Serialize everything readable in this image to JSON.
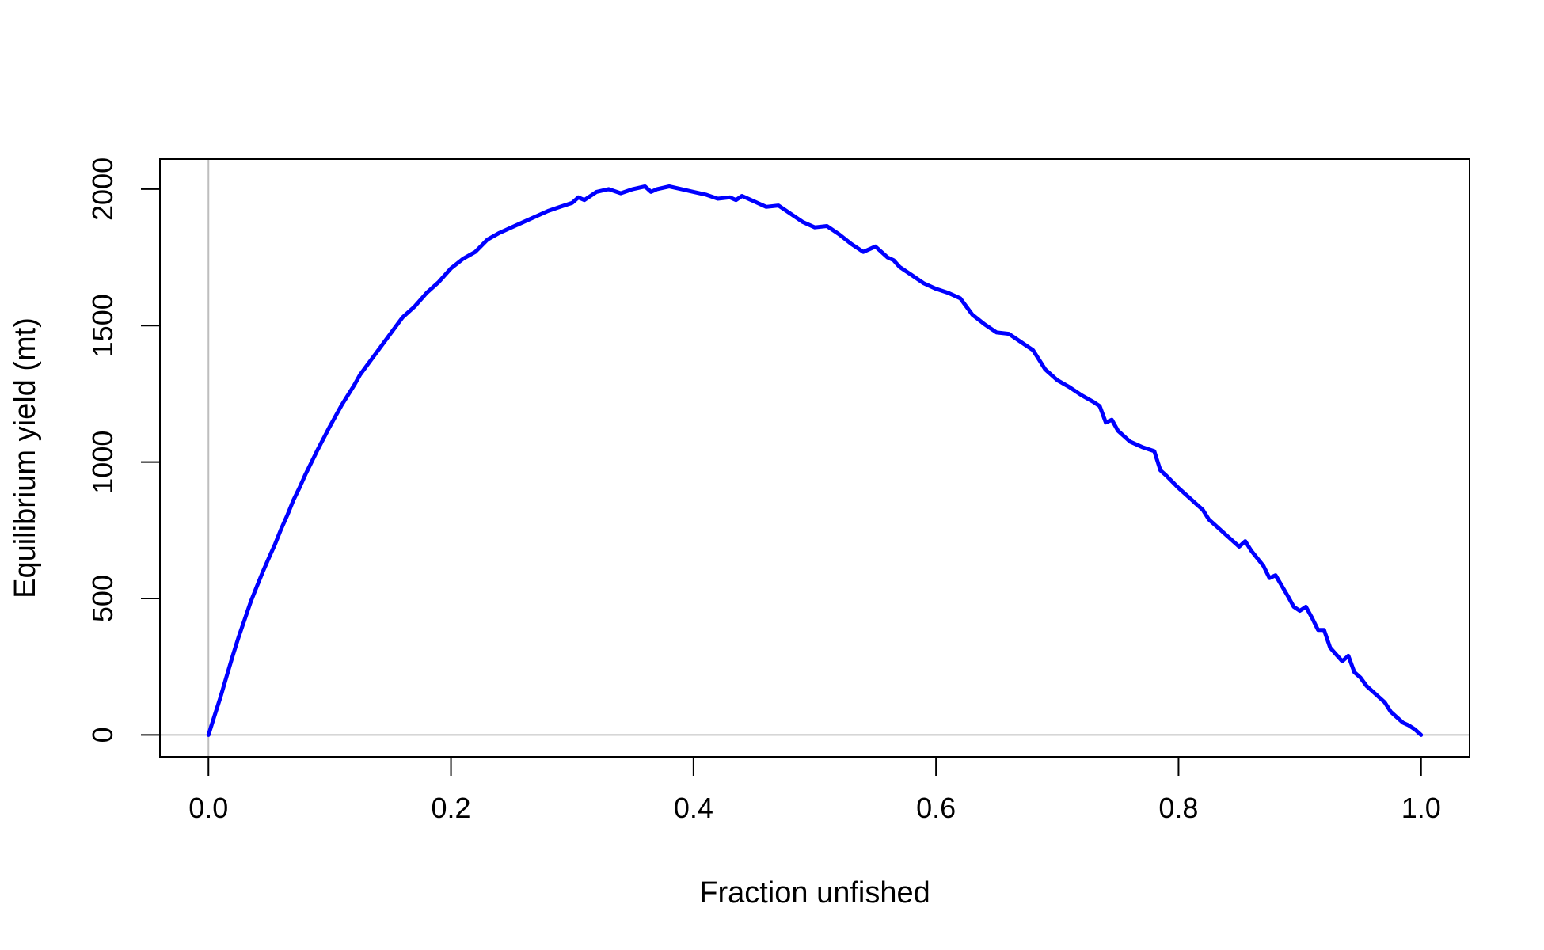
{
  "chart_data": {
    "type": "line",
    "title": "",
    "xlabel": "Fraction unfished",
    "ylabel": "Equilibrium yield (mt)",
    "xlim": [
      -0.04,
      1.04
    ],
    "ylim": [
      -80,
      2110
    ],
    "x_ticks": [
      0.0,
      0.2,
      0.4,
      0.6,
      0.8,
      1.0
    ],
    "x_tick_labels": [
      "0.0",
      "0.2",
      "0.4",
      "0.6",
      "0.8",
      "1.0"
    ],
    "y_ticks": [
      0,
      500,
      1000,
      1500,
      2000
    ],
    "y_tick_labels": [
      "0",
      "500",
      "1000",
      "1500",
      "2000"
    ],
    "reference_lines": [
      {
        "orientation": "vertical",
        "value": 0,
        "color": "#bebebe"
      },
      {
        "orientation": "horizontal",
        "value": 0,
        "color": "#bebebe"
      }
    ],
    "series": [
      {
        "name": "Equilibrium yield",
        "color": "#0000ff",
        "x": [
          0.0,
          0.005,
          0.01,
          0.015,
          0.02,
          0.025,
          0.03,
          0.035,
          0.04,
          0.045,
          0.05,
          0.055,
          0.06,
          0.065,
          0.07,
          0.075,
          0.08,
          0.09,
          0.1,
          0.11,
          0.12,
          0.125,
          0.13,
          0.14,
          0.15,
          0.16,
          0.17,
          0.18,
          0.19,
          0.2,
          0.21,
          0.22,
          0.23,
          0.24,
          0.25,
          0.26,
          0.27,
          0.28,
          0.29,
          0.3,
          0.305,
          0.31,
          0.32,
          0.33,
          0.34,
          0.35,
          0.36,
          0.365,
          0.37,
          0.38,
          0.39,
          0.4,
          0.41,
          0.42,
          0.43,
          0.435,
          0.44,
          0.45,
          0.46,
          0.47,
          0.48,
          0.49,
          0.5,
          0.51,
          0.52,
          0.53,
          0.54,
          0.55,
          0.56,
          0.565,
          0.57,
          0.58,
          0.59,
          0.6,
          0.61,
          0.62,
          0.63,
          0.64,
          0.65,
          0.66,
          0.67,
          0.68,
          0.69,
          0.7,
          0.71,
          0.72,
          0.73,
          0.735,
          0.74,
          0.745,
          0.75,
          0.76,
          0.77,
          0.78,
          0.785,
          0.79,
          0.8,
          0.81,
          0.815,
          0.82,
          0.825,
          0.83,
          0.84,
          0.85,
          0.855,
          0.86,
          0.87,
          0.875,
          0.88,
          0.89,
          0.895,
          0.9,
          0.905,
          0.91,
          0.915,
          0.92,
          0.925,
          0.93,
          0.935,
          0.94,
          0.945,
          0.95,
          0.955,
          0.96,
          0.965,
          0.97,
          0.975,
          0.98,
          0.985,
          0.99,
          0.995,
          1.0
        ],
        "y": [
          0,
          70,
          140,
          215,
          290,
          360,
          425,
          490,
          545,
          600,
          650,
          700,
          755,
          805,
          860,
          905,
          955,
          1045,
          1130,
          1210,
          1280,
          1320,
          1350,
          1410,
          1470,
          1530,
          1570,
          1620,
          1660,
          1710,
          1745,
          1770,
          1815,
          1840,
          1860,
          1880,
          1900,
          1920,
          1935,
          1950,
          1970,
          1960,
          1990,
          2000,
          1985,
          2000,
          2010,
          1990,
          2000,
          2010,
          2000,
          1990,
          1980,
          1965,
          1970,
          1960,
          1975,
          1955,
          1935,
          1940,
          1910,
          1880,
          1860,
          1865,
          1835,
          1800,
          1770,
          1790,
          1750,
          1740,
          1715,
          1685,
          1655,
          1635,
          1620,
          1600,
          1540,
          1505,
          1475,
          1470,
          1440,
          1410,
          1340,
          1300,
          1275,
          1245,
          1220,
          1205,
          1145,
          1155,
          1115,
          1075,
          1055,
          1040,
          970,
          950,
          905,
          865,
          845,
          825,
          790,
          770,
          730,
          690,
          710,
          675,
          620,
          575,
          585,
          510,
          470,
          455,
          470,
          430,
          385,
          385,
          320,
          295,
          270,
          290,
          230,
          210,
          180,
          160,
          140,
          120,
          85,
          65,
          45,
          35,
          20,
          0
        ]
      }
    ]
  }
}
